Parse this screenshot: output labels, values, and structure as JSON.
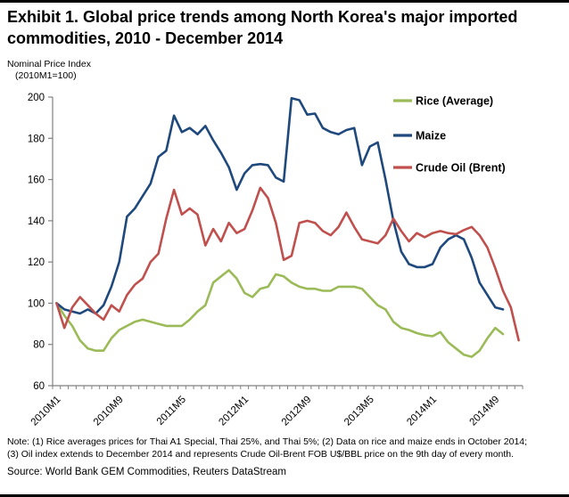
{
  "title": {
    "line1": "Exhibit 1. Global price trends among North Korea's major imported",
    "line2": "commodities, 2010 - December 2014"
  },
  "y_axis": {
    "label_line1": "Nominal Price Index",
    "label_line2": "(2010M1=100)",
    "min": 60,
    "max": 200,
    "step": 20
  },
  "x_axis": {
    "tick_labels": [
      "2010M1",
      "2010M9",
      "2011M5",
      "2012M1",
      "2012M9",
      "2013M5",
      "2014M1",
      "2014M9"
    ]
  },
  "legend": {
    "items": [
      {
        "label": "Rice (Average)",
        "color": "#9BBB59"
      },
      {
        "label": "Maize",
        "color": "#1F497D"
      },
      {
        "label": "Crude Oil (Brent)",
        "color": "#C0504D"
      }
    ]
  },
  "chart_data": {
    "type": "line",
    "title": "Exhibit 1. Global price trends among North Korea's major imported commodities, 2010 - December 2014",
    "xlabel": "",
    "ylabel": "Nominal Price Index (2010M1=100)",
    "ylim": [
      60,
      200
    ],
    "grid": false,
    "legend_position": "right",
    "months": [
      "2010M1",
      "2010M2",
      "2010M3",
      "2010M4",
      "2010M5",
      "2010M6",
      "2010M7",
      "2010M8",
      "2010M9",
      "2010M10",
      "2010M11",
      "2010M12",
      "2011M1",
      "2011M2",
      "2011M3",
      "2011M4",
      "2011M5",
      "2011M6",
      "2011M7",
      "2011M8",
      "2011M9",
      "2011M10",
      "2011M11",
      "2011M12",
      "2012M1",
      "2012M2",
      "2012M3",
      "2012M4",
      "2012M5",
      "2012M6",
      "2012M7",
      "2012M8",
      "2012M9",
      "2012M10",
      "2012M11",
      "2012M12",
      "2013M1",
      "2013M2",
      "2013M3",
      "2013M4",
      "2013M5",
      "2013M6",
      "2013M7",
      "2013M8",
      "2013M9",
      "2013M10",
      "2013M11",
      "2013M12",
      "2014M1",
      "2014M2",
      "2014M3",
      "2014M4",
      "2014M5",
      "2014M6",
      "2014M7",
      "2014M8",
      "2014M9",
      "2014M10",
      "2014M11",
      "2014M12"
    ],
    "series": [
      {
        "name": "Rice (Average)",
        "color": "#9BBB59",
        "values": [
          100,
          94,
          89,
          82,
          78,
          77,
          77,
          83,
          87,
          89,
          91,
          92,
          91,
          90,
          89,
          89,
          89,
          92,
          96,
          99,
          110,
          113,
          116,
          112,
          105,
          103,
          107,
          108,
          114,
          113,
          110,
          108,
          107,
          107,
          106,
          106,
          108,
          108,
          108,
          107,
          103,
          99,
          97,
          91,
          88,
          87,
          85.5,
          84.5,
          84,
          86,
          81,
          78,
          75,
          74,
          77,
          83,
          88,
          85,
          null,
          null
        ]
      },
      {
        "name": "Maize",
        "color": "#1F497D",
        "values": [
          100,
          97,
          96,
          95,
          97,
          95,
          99,
          108,
          120,
          142,
          146,
          152,
          158,
          171,
          174,
          191,
          183,
          185,
          182,
          186,
          179,
          173,
          166,
          155,
          163,
          167,
          167.5,
          167,
          161,
          159,
          199.5,
          198.5,
          191.5,
          192,
          185,
          183,
          182,
          184,
          185,
          167,
          176,
          178,
          160,
          140,
          125,
          119,
          117.5,
          117.5,
          119,
          127,
          131,
          133,
          131,
          122,
          110,
          104,
          98,
          97,
          null,
          null
        ]
      },
      {
        "name": "Crude Oil (Brent)",
        "color": "#C0504D",
        "values": [
          100,
          88,
          98,
          103,
          99,
          95,
          92,
          99,
          96,
          104,
          109,
          112,
          120,
          124,
          141,
          155,
          143,
          146,
          143,
          128,
          136,
          130,
          139,
          134,
          136,
          145,
          156,
          151,
          139,
          121,
          123,
          139,
          140,
          139,
          135,
          133,
          137,
          144,
          137,
          131,
          130,
          129,
          133,
          141,
          135,
          130,
          134,
          132,
          134,
          135,
          134,
          133.5,
          135.5,
          137,
          133,
          127,
          117,
          106,
          98,
          82
        ]
      }
    ]
  },
  "notes": {
    "line1": "Note: (1) Rice averages prices for Thai A1 Special, Thai 25%, and Thai 5%; (2)  Data on rice and maize ends in October 2014;",
    "line2": "(3) Oil index extends to December 2014 and represents Crude Oil-Brent FOB U$/BBL price on the 9th day of every month."
  },
  "source": {
    "text": "Source: World Bank  GEM Commodities, Reuters DataStream"
  }
}
